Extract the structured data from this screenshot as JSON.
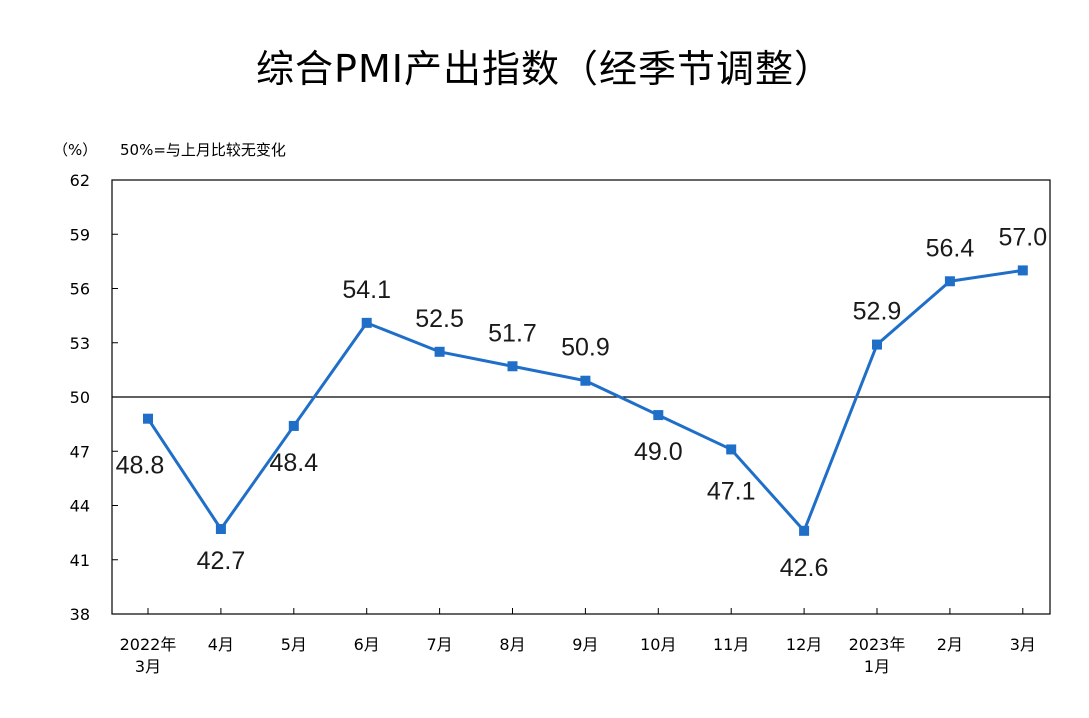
{
  "chart_data": {
    "type": "line",
    "title": "综合PMI产出指数（经季节调整）",
    "ylabel": "（%）",
    "annotation": "50%=与上月比较无变化",
    "ylim": [
      38,
      62
    ],
    "yticks": [
      38,
      41,
      44,
      47,
      50,
      53,
      56,
      59,
      62
    ],
    "reference_value": 50,
    "categories": [
      [
        "2022年",
        "3月"
      ],
      [
        "4月"
      ],
      [
        "5月"
      ],
      [
        "6月"
      ],
      [
        "7月"
      ],
      [
        "8月"
      ],
      [
        "9月"
      ],
      [
        "10月"
      ],
      [
        "11月"
      ],
      [
        "12月"
      ],
      [
        "2023年",
        "1月"
      ],
      [
        "2月"
      ],
      [
        "3月"
      ]
    ],
    "series": [
      {
        "name": "综合PMI产出指数",
        "color": "#1f6fc9",
        "values": [
          48.8,
          42.7,
          48.4,
          54.1,
          52.5,
          51.7,
          50.9,
          49.0,
          47.1,
          42.6,
          52.9,
          56.4,
          57.0
        ],
        "labels": [
          "48.8",
          "42.7",
          "48.4",
          "54.1",
          "52.5",
          "51.7",
          "50.9",
          "49.0",
          "47.1",
          "42.6",
          "52.9",
          "56.4",
          "57.0"
        ]
      }
    ]
  }
}
